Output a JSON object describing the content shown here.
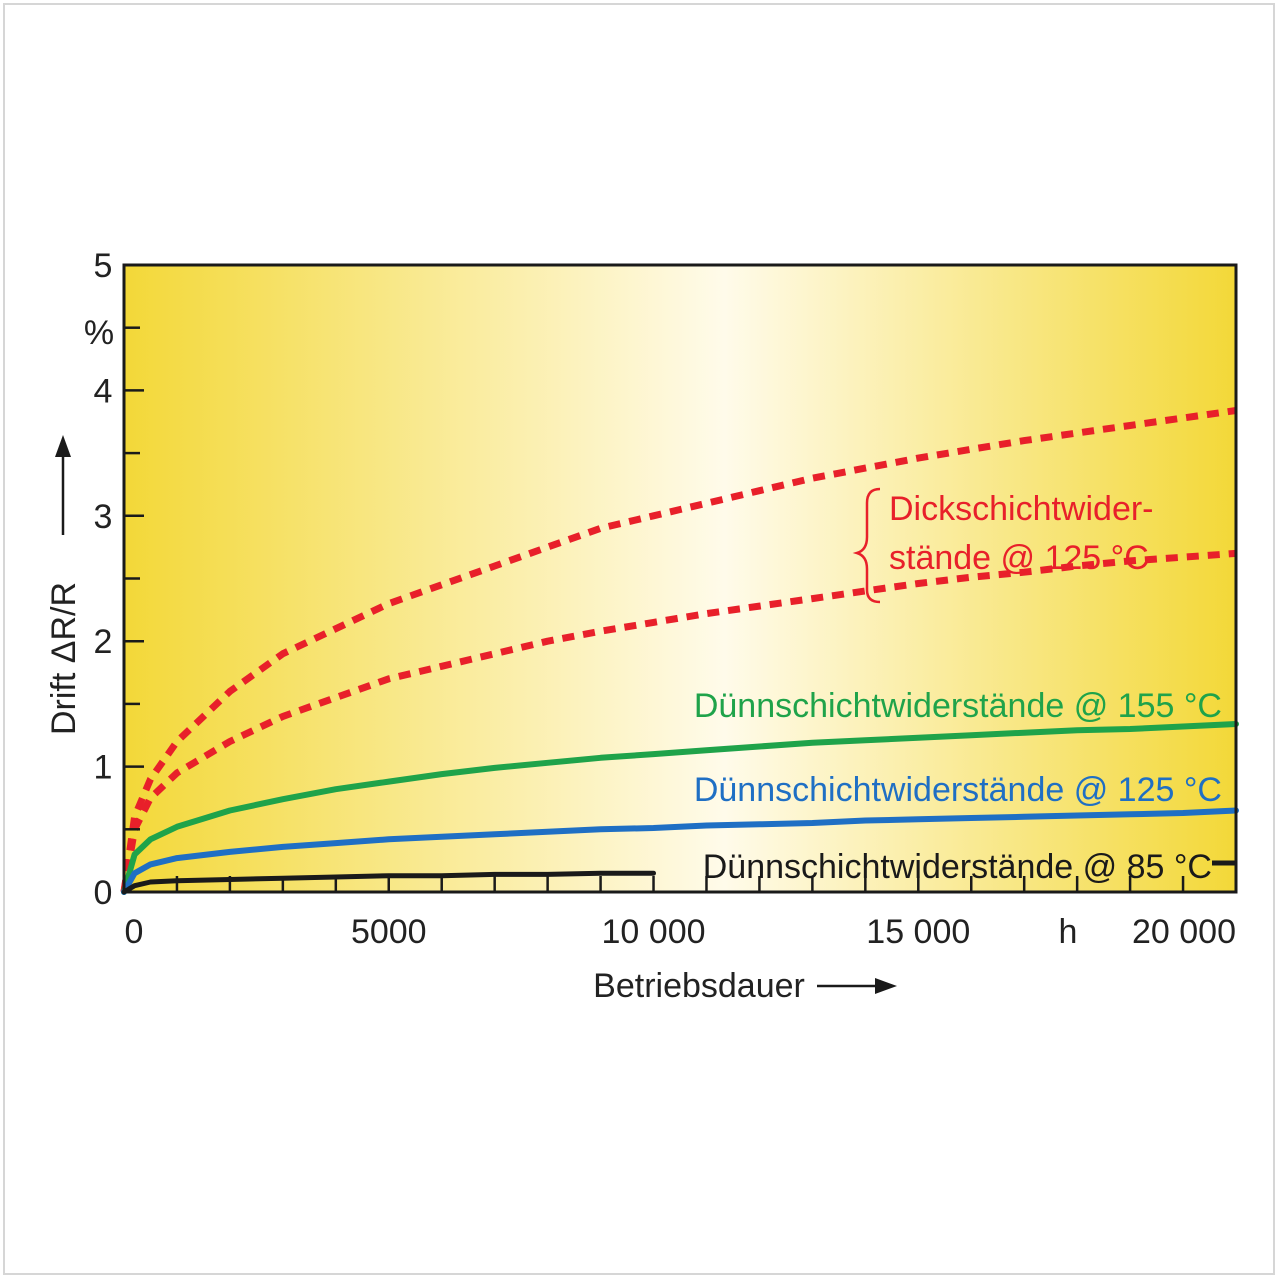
{
  "chart_data": {
    "type": "line",
    "xlabel": "Betriebsdauer",
    "ylabel": "Drift ΔR/R",
    "y_unit": "%",
    "x_unit": "h",
    "xlim": [
      0,
      21000
    ],
    "ylim": [
      0,
      5
    ],
    "x_ticks": [
      {
        "value": 0,
        "label": "0"
      },
      {
        "value": 5000,
        "label": "5000"
      },
      {
        "value": 10000,
        "label": "10 000"
      },
      {
        "value": 15000,
        "label": "15 000"
      },
      {
        "value": 20000,
        "label": "20 000"
      }
    ],
    "y_ticks": [
      {
        "value": 0,
        "label": "0"
      },
      {
        "value": 1,
        "label": "1"
      },
      {
        "value": 2,
        "label": "2"
      },
      {
        "value": 3,
        "label": "3"
      },
      {
        "value": 4,
        "label": "4"
      },
      {
        "value": 5,
        "label": "5"
      }
    ],
    "series": [
      {
        "id": "thick-upper",
        "group": "Dickschichtwiderstände @ 125 °C",
        "color": "#e8202a",
        "style": "dotted",
        "x": [
          0,
          200,
          500,
          1000,
          2000,
          3000,
          4000,
          5000,
          6000,
          7000,
          8000,
          9000,
          10000,
          11000,
          12000,
          13000,
          14000,
          15000,
          16000,
          17000,
          18000,
          19000,
          20000,
          21000
        ],
        "y": [
          0,
          0.6,
          0.9,
          1.2,
          1.6,
          1.9,
          2.1,
          2.3,
          2.45,
          2.6,
          2.75,
          2.9,
          3.0,
          3.1,
          3.2,
          3.3,
          3.38,
          3.46,
          3.53,
          3.6,
          3.66,
          3.72,
          3.78,
          3.84
        ]
      },
      {
        "id": "thick-lower",
        "group": "Dickschichtwiderstände @ 125 °C",
        "color": "#e8202a",
        "style": "dotted",
        "x": [
          0,
          200,
          500,
          1000,
          2000,
          3000,
          4000,
          5000,
          6000,
          7000,
          8000,
          9000,
          10000,
          11000,
          12000,
          13000,
          14000,
          15000,
          16000,
          17000,
          18000,
          19000,
          20000,
          21000
        ],
        "y": [
          0,
          0.5,
          0.75,
          0.95,
          1.2,
          1.4,
          1.55,
          1.7,
          1.8,
          1.9,
          2.0,
          2.08,
          2.15,
          2.22,
          2.28,
          2.34,
          2.4,
          2.46,
          2.51,
          2.55,
          2.6,
          2.64,
          2.67,
          2.7
        ]
      },
      {
        "id": "thin-155",
        "name": "Dünnschichtwiderstände @ 155 °C",
        "color": "#1fa34a",
        "style": "solid",
        "x": [
          0,
          200,
          500,
          1000,
          2000,
          3000,
          4000,
          5000,
          6000,
          7000,
          8000,
          9000,
          10000,
          11000,
          12000,
          13000,
          14000,
          15000,
          16000,
          17000,
          18000,
          19000,
          20000,
          21000
        ],
        "y": [
          0,
          0.3,
          0.42,
          0.52,
          0.65,
          0.74,
          0.82,
          0.88,
          0.94,
          0.99,
          1.03,
          1.07,
          1.1,
          1.13,
          1.16,
          1.19,
          1.21,
          1.23,
          1.25,
          1.27,
          1.29,
          1.3,
          1.32,
          1.34
        ]
      },
      {
        "id": "thin-125",
        "name": "Dünnschichtwiderstände @ 125 °C",
        "color": "#1f6fc4",
        "style": "solid",
        "x": [
          0,
          200,
          500,
          1000,
          2000,
          3000,
          4000,
          5000,
          6000,
          7000,
          8000,
          9000,
          10000,
          11000,
          12000,
          13000,
          14000,
          15000,
          16000,
          17000,
          18000,
          19000,
          20000,
          21000
        ],
        "y": [
          0,
          0.15,
          0.22,
          0.27,
          0.32,
          0.36,
          0.39,
          0.42,
          0.44,
          0.46,
          0.48,
          0.5,
          0.51,
          0.53,
          0.54,
          0.55,
          0.57,
          0.58,
          0.59,
          0.6,
          0.61,
          0.62,
          0.63,
          0.65
        ]
      },
      {
        "id": "thin-85",
        "name": "Dünnschichtwiderstände @ 85 °C",
        "color": "#1a1a1a",
        "style": "solid",
        "x": [
          0,
          200,
          500,
          1000,
          2000,
          3000,
          4000,
          5000,
          6000,
          7000,
          8000,
          9000,
          10000
        ],
        "y": [
          0,
          0.05,
          0.08,
          0.09,
          0.1,
          0.11,
          0.12,
          0.13,
          0.13,
          0.14,
          0.14,
          0.15,
          0.15
        ]
      }
    ],
    "annotations": {
      "thick_line1": "Dickschichtwider-",
      "thick_line2": "stände @ 125 °C",
      "thin155": "Dünnschichtwiderstände @ 155 °C",
      "thin125": "Dünnschichtwiderstände @ 125 °C",
      "thin85": "Dünnschichtwiderstände @ 85 °C"
    },
    "colors": {
      "background_edge": "#f3d838",
      "background_center": "#fffbea",
      "axis": "#1a1a1a"
    },
    "grid": false
  }
}
